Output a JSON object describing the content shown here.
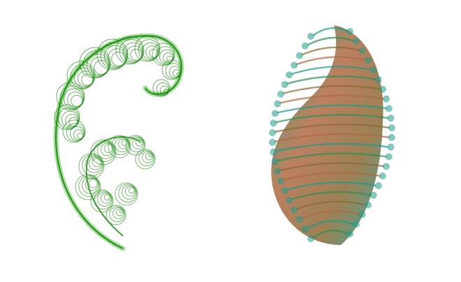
{
  "scene": {
    "background": "#ffffff",
    "items": [
      {
        "kind": "fractal-fern",
        "style": "curled-spiral",
        "primary_color": "#1e8a12",
        "highlight_color": "#5cc24a"
      },
      {
        "kind": "fractal-fern",
        "style": "leaf-plume",
        "colors": [
          "#1f9a8a",
          "#2b8f57",
          "#8b6a35",
          "#b06a44"
        ]
      }
    ]
  }
}
